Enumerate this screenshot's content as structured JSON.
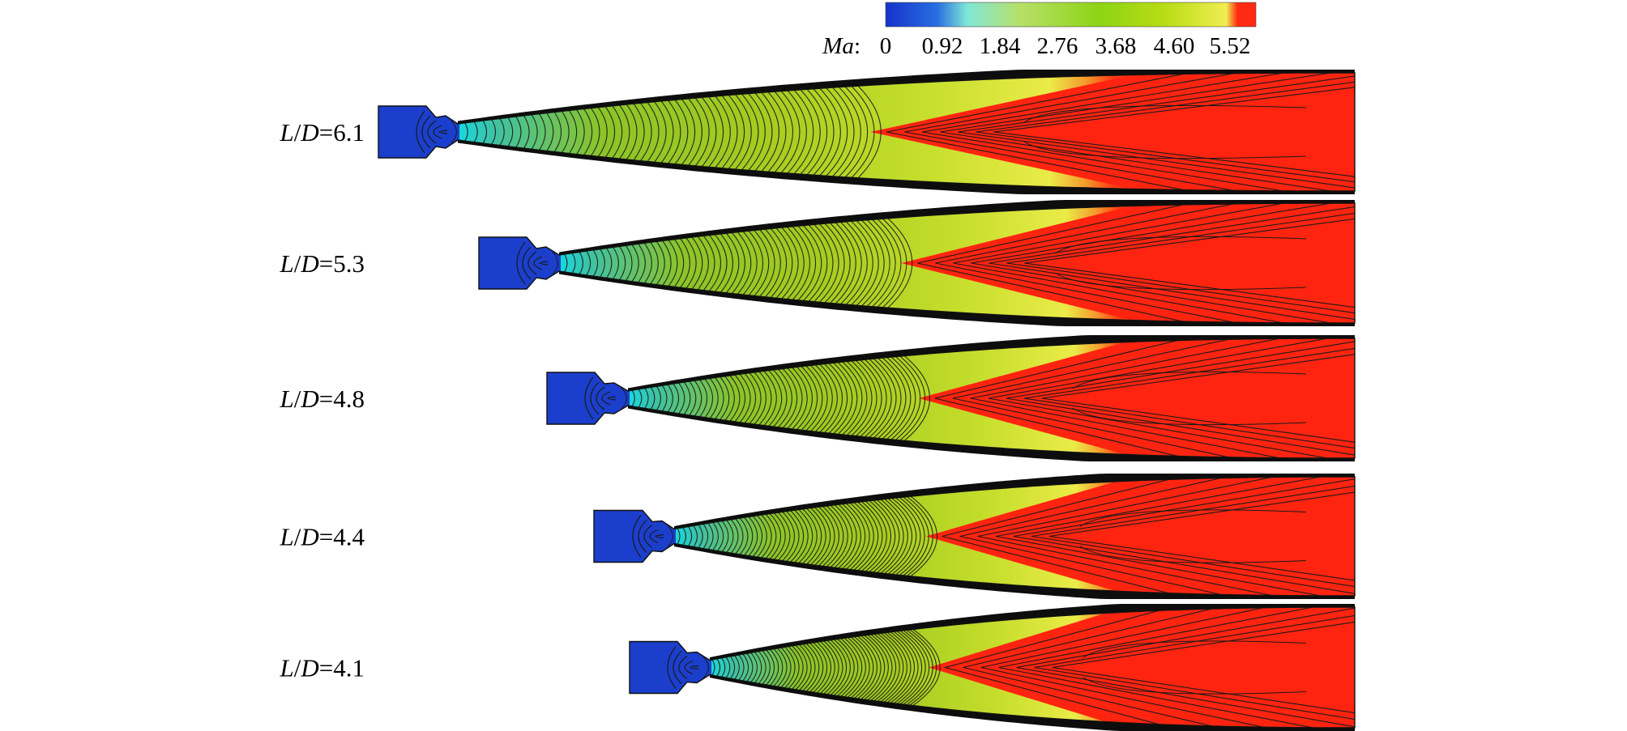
{
  "colorbar": {
    "variable": "Ma",
    "separator": ":",
    "ticks": [
      "0",
      "0.92",
      "1.84",
      "2.76",
      "3.68",
      "4.60",
      "5.52"
    ],
    "colors": [
      "#1533cc",
      "#2a6fe0",
      "#7fe6d8",
      "#b7e06a",
      "#8ed414",
      "#b8dc14",
      "#f0ee50",
      "#ff2a12"
    ]
  },
  "panels": [
    {
      "label_var1": "L",
      "label_slash": "/",
      "label_var2": "D",
      "label_value": "=6.1"
    },
    {
      "label_var1": "L",
      "label_slash": "/",
      "label_var2": "D",
      "label_value": "=5.3"
    },
    {
      "label_var1": "L",
      "label_slash": "/",
      "label_var2": "D",
      "label_value": "=4.8"
    },
    {
      "label_var1": "L",
      "label_slash": "/",
      "label_var2": "D",
      "label_value": "=4.4"
    },
    {
      "label_var1": "L",
      "label_slash": "/",
      "label_var2": "D",
      "label_value": "=4.1"
    }
  ],
  "field_colors": {
    "chamber": "#1b3fcc",
    "wall": "#0d0d0d",
    "core": "#ff2410",
    "contour_line": "#1a1a1a"
  }
}
